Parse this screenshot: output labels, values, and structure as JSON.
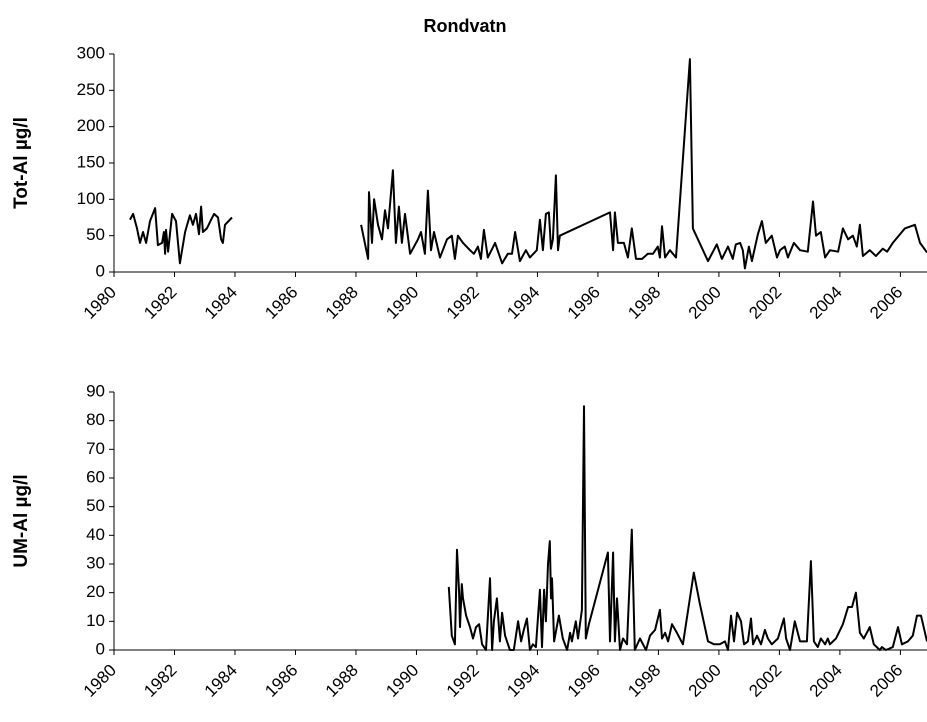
{
  "chart_data": [
    {
      "type": "line",
      "title": "Rondvatn",
      "y_label": "Tot-Al µg/l",
      "x": [
        1980.53,
        1980.63,
        1980.76,
        1980.86,
        1980.96,
        1981.06,
        1981.19,
        1981.36,
        1981.45,
        1981.59,
        1981.65,
        1981.69,
        1981.72,
        1981.79,
        1981.92,
        1982.05,
        1982.18,
        1982.35,
        1982.51,
        1982.61,
        1982.71,
        1982.81,
        1982.88,
        1982.94,
        1983.07,
        1983.21,
        1983.31,
        1983.44,
        1983.54,
        1983.6,
        1983.67,
        1983.9,
        null,
        1988.17,
        1988.4,
        1988.43,
        1988.53,
        1988.6,
        1988.73,
        1988.86,
        1988.96,
        1989.06,
        1989.22,
        1989.32,
        1989.42,
        1989.52,
        1989.62,
        1989.79,
        1990.05,
        1990.15,
        1990.28,
        1990.38,
        1990.48,
        1990.58,
        1990.78,
        1991.01,
        1991.17,
        1991.27,
        1991.37,
        1991.54,
        1991.77,
        1991.9,
        1992.03,
        1992.13,
        1992.23,
        1992.36,
        1992.6,
        1992.83,
        1993.02,
        1993.16,
        1993.26,
        1993.42,
        1993.62,
        1993.75,
        1993.98,
        1994.08,
        1994.18,
        1994.28,
        1994.38,
        1994.45,
        1994.51,
        1994.61,
        1994.68,
        1994.74,
        1996.4,
        1996.5,
        1996.56,
        1996.66,
        1996.86,
        1996.99,
        1997.12,
        1997.26,
        1997.46,
        1997.65,
        1997.82,
        1997.98,
        1998.05,
        1998.12,
        1998.22,
        1998.38,
        1998.58,
        1999.04,
        1999.14,
        1999.64,
        1999.93,
        2000.1,
        2000.3,
        2000.46,
        2000.56,
        2000.7,
        2000.79,
        2000.86,
        2000.99,
        2001.09,
        2001.29,
        2001.42,
        2001.55,
        2001.75,
        2001.92,
        2002.02,
        2002.18,
        2002.28,
        2002.48,
        2002.68,
        2002.94,
        2003.11,
        2003.21,
        2003.37,
        2003.51,
        2003.67,
        2003.94,
        2004.1,
        2004.27,
        2004.43,
        2004.56,
        2004.66,
        2004.76,
        2004.99,
        2005.19,
        2005.42,
        2005.56,
        2005.75,
        2006.15,
        2006.48,
        2006.65,
        2006.88
      ],
      "series": [
        {
          "color": "#000000",
          "values": [
            72,
            80,
            60,
            40,
            55,
            40,
            70,
            88,
            37,
            40,
            55,
            25,
            58,
            28,
            80,
            70,
            12,
            55,
            78,
            65,
            80,
            52,
            90,
            55,
            60,
            72,
            80,
            75,
            45,
            40,
            65,
            75,
            null,
            65,
            18,
            110,
            40,
            100,
            65,
            45,
            85,
            60,
            140,
            40,
            90,
            40,
            80,
            25,
            45,
            55,
            25,
            112,
            30,
            55,
            20,
            45,
            50,
            18,
            50,
            40,
            30,
            25,
            35,
            18,
            58,
            20,
            40,
            12,
            25,
            25,
            55,
            15,
            30,
            20,
            30,
            72,
            30,
            80,
            82,
            32,
            45,
            133,
            30,
            50,
            82,
            30,
            82,
            40,
            40,
            20,
            60,
            18,
            18,
            25,
            25,
            35,
            20,
            63,
            20,
            30,
            20,
            293,
            60,
            15,
            38,
            18,
            35,
            18,
            38,
            40,
            30,
            5,
            35,
            15,
            52,
            70,
            40,
            50,
            20,
            30,
            35,
            20,
            40,
            30,
            28,
            97,
            50,
            55,
            20,
            30,
            28,
            60,
            45,
            50,
            35,
            65,
            22,
            30,
            22,
            32,
            28,
            40,
            60,
            65,
            40,
            27
          ]
        }
      ],
      "xlim": [
        1980,
        2006.88
      ],
      "xticks": [
        1980,
        1982,
        1984,
        1986,
        1988,
        1990,
        1992,
        1994,
        1996,
        1998,
        2000,
        2002,
        2004,
        2006
      ],
      "ylim": [
        0,
        300
      ],
      "yticks": [
        0,
        50,
        100,
        150,
        200,
        250,
        300
      ]
    },
    {
      "type": "line",
      "y_label": "UM-Al µg/l",
      "x": [
        1991.07,
        1991.17,
        1991.27,
        1991.34,
        1991.41,
        1991.44,
        1991.5,
        1991.54,
        1991.64,
        1991.77,
        1991.87,
        1991.97,
        1992.07,
        1992.17,
        1992.3,
        1992.43,
        1992.5,
        1992.56,
        1992.66,
        1992.76,
        1992.83,
        1992.93,
        1993.09,
        1993.22,
        1993.36,
        1993.46,
        1993.55,
        1993.65,
        1993.75,
        1993.85,
        1993.95,
        1994.08,
        1994.15,
        1994.22,
        1994.28,
        1994.35,
        1994.41,
        1994.45,
        1994.48,
        1994.55,
        1994.71,
        1994.84,
        1994.98,
        1995.08,
        1995.14,
        1995.27,
        1995.34,
        1995.47,
        1995.54,
        1995.6,
        1995.7,
        1996.33,
        1996.4,
        1996.5,
        1996.56,
        1996.63,
        1996.73,
        1996.83,
        1996.96,
        1997.12,
        1997.22,
        1997.39,
        1997.49,
        1997.59,
        1997.72,
        1997.89,
        1998.05,
        1998.12,
        1998.22,
        1998.32,
        1998.45,
        1998.61,
        1998.81,
        1999.17,
        1999.37,
        1999.64,
        1999.84,
        2000.03,
        2000.2,
        2000.3,
        2000.4,
        2000.5,
        2000.6,
        2000.73,
        2000.83,
        2000.96,
        2001.06,
        2001.13,
        2001.26,
        2001.39,
        2001.52,
        2001.62,
        2001.75,
        2001.95,
        2002.15,
        2002.22,
        2002.35,
        2002.51,
        2002.68,
        2002.91,
        2003.04,
        2003.14,
        2003.27,
        2003.37,
        2003.51,
        2003.6,
        2003.67,
        2003.87,
        2004.1,
        2004.27,
        2004.4,
        2004.53,
        2004.66,
        2004.79,
        2004.99,
        2005.12,
        2005.32,
        2005.39,
        2005.52,
        2005.75,
        2005.92,
        2006.05,
        2006.25,
        2006.41,
        2006.55,
        2006.68,
        2006.88
      ],
      "series": [
        {
          "color": "#000000",
          "values": [
            22,
            5,
            2,
            35,
            20,
            8,
            23,
            18,
            12,
            8,
            4,
            8,
            9,
            2,
            0,
            25,
            0,
            10,
            18,
            3,
            13,
            5,
            0,
            0,
            10,
            3,
            7,
            11,
            0,
            2,
            1,
            21,
            1,
            21,
            10,
            30,
            38,
            18,
            25,
            3,
            12,
            4,
            0,
            6,
            3,
            10,
            4,
            14,
            85,
            4,
            9,
            34,
            3,
            34,
            3,
            18,
            0,
            4,
            2,
            42,
            0,
            4,
            2,
            0,
            5,
            7,
            14,
            4,
            6,
            3,
            9,
            6,
            2,
            27,
            16,
            3,
            2,
            2,
            3,
            0,
            12,
            3,
            13,
            10,
            2,
            3,
            11,
            2,
            5,
            2,
            7,
            4,
            2,
            4,
            11,
            4,
            0,
            10,
            3,
            3,
            31,
            3,
            1,
            4,
            2,
            4,
            2,
            4,
            9,
            15,
            15,
            20,
            6,
            4,
            8,
            2,
            0,
            1,
            0,
            1,
            8,
            2,
            3,
            5,
            12,
            12,
            3
          ]
        }
      ],
      "xlim": [
        1980,
        2006.88
      ],
      "xticks": [
        1980,
        1982,
        1984,
        1986,
        1988,
        1990,
        1992,
        1994,
        1996,
        1998,
        2000,
        2002,
        2004,
        2006
      ],
      "ylim": [
        0,
        90
      ],
      "yticks": [
        0,
        10,
        20,
        30,
        40,
        50,
        60,
        70,
        80,
        90
      ]
    }
  ]
}
